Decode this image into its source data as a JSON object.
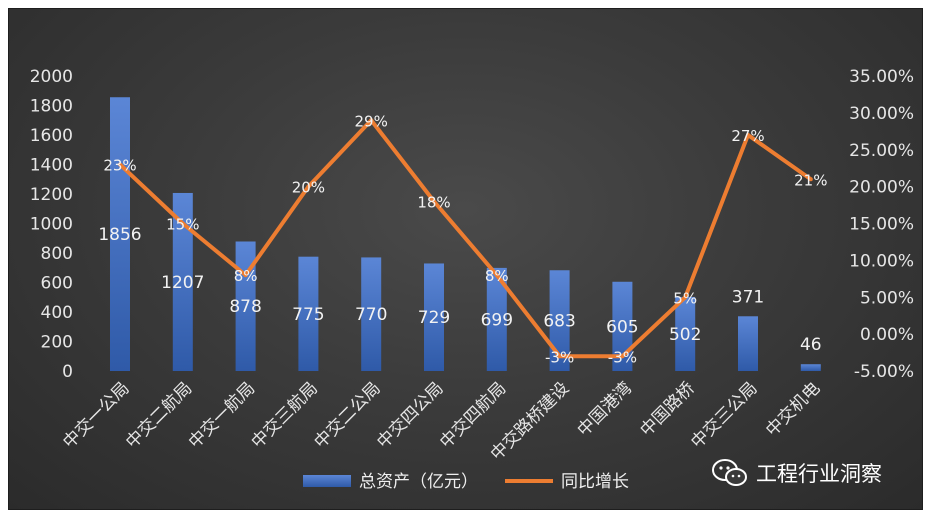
{
  "watermark": {
    "text": "工程行业洞察",
    "icon": "wechat-icon"
  },
  "chart_data": {
    "type": "bar",
    "categories": [
      "中交一公局",
      "中交二航局",
      "中交一航局",
      "中交三航局",
      "中交二公局",
      "中交四公局",
      "中交四航局",
      "中交路桥建设",
      "中国港湾",
      "中国路桥",
      "中交三公局",
      "中交机电"
    ],
    "series": [
      {
        "name": "总资产（亿元）",
        "type": "bar",
        "axis": "left",
        "values": [
          1856,
          1207,
          878,
          775,
          770,
          729,
          699,
          683,
          605,
          502,
          371,
          46
        ],
        "value_labels": [
          "1856",
          "1207",
          "878",
          "775",
          "770",
          "729",
          "699",
          "683",
          "605",
          "502",
          "371",
          "46"
        ]
      },
      {
        "name": "同比增长",
        "type": "line",
        "axis": "right",
        "values": [
          0.23,
          0.15,
          0.08,
          0.2,
          0.29,
          0.18,
          0.08,
          -0.03,
          -0.03,
          0.05,
          0.27,
          0.21
        ],
        "value_labels": [
          "23%",
          "15%",
          "8%",
          "20%",
          "29%",
          "18%",
          "8%",
          "-3%",
          "-3%",
          "5%",
          "27%",
          "21%"
        ]
      }
    ],
    "y_left": {
      "min": 0,
      "max": 2000,
      "ticks": [
        "0",
        "200",
        "400",
        "600",
        "800",
        "1000",
        "1200",
        "1400",
        "1600",
        "1800",
        "2000"
      ]
    },
    "y_right": {
      "min": -0.05,
      "max": 0.35,
      "ticks": [
        "-5.00%",
        "0.00%",
        "5.00%",
        "10.00%",
        "15.00%",
        "20.00%",
        "25.00%",
        "30.00%",
        "35.00%"
      ]
    },
    "colors": {
      "bar_top": "#5b86d6",
      "bar_bottom": "#2f5aa8",
      "line": "#ed7d31",
      "text": "#e6e6e6"
    },
    "grid": false,
    "legend": "bottom"
  }
}
